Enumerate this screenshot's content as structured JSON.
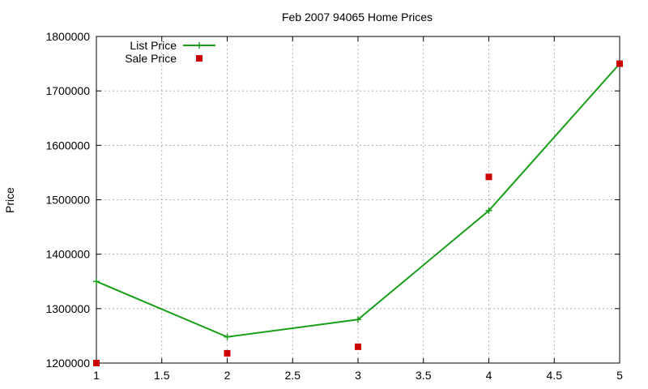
{
  "chart_data": {
    "type": "line",
    "title": "Feb 2007 94065 Home Prices",
    "xlabel": "",
    "ylabel": "Price",
    "xlim": [
      1,
      5
    ],
    "ylim": [
      1200000,
      1800000
    ],
    "xticks": [
      "1",
      "1.5",
      "2",
      "2.5",
      "3",
      "3.5",
      "4",
      "4.5",
      "5"
    ],
    "xtick_values": [
      1,
      1.5,
      2,
      2.5,
      3,
      3.5,
      4,
      4.5,
      5
    ],
    "yticks": [
      "1200000",
      "1300000",
      "1400000",
      "1500000",
      "1600000",
      "1700000",
      "1800000"
    ],
    "ytick_values": [
      1200000,
      1300000,
      1400000,
      1500000,
      1600000,
      1700000,
      1800000
    ],
    "grid": true,
    "legend_position": "top-left",
    "series": [
      {
        "name": "List Price",
        "style": "line-with-plus-markers",
        "color": "#1a9e1a",
        "x": [
          1,
          2,
          3,
          4,
          5
        ],
        "values": [
          1350000,
          1248000,
          1280000,
          1480000,
          1750000
        ]
      },
      {
        "name": "Sale Price",
        "style": "square-markers",
        "color": "#cc0000",
        "x": [
          1,
          2,
          3,
          4,
          5
        ],
        "values": [
          1200000,
          1218000,
          1230000,
          1542000,
          1750000
        ]
      }
    ]
  }
}
